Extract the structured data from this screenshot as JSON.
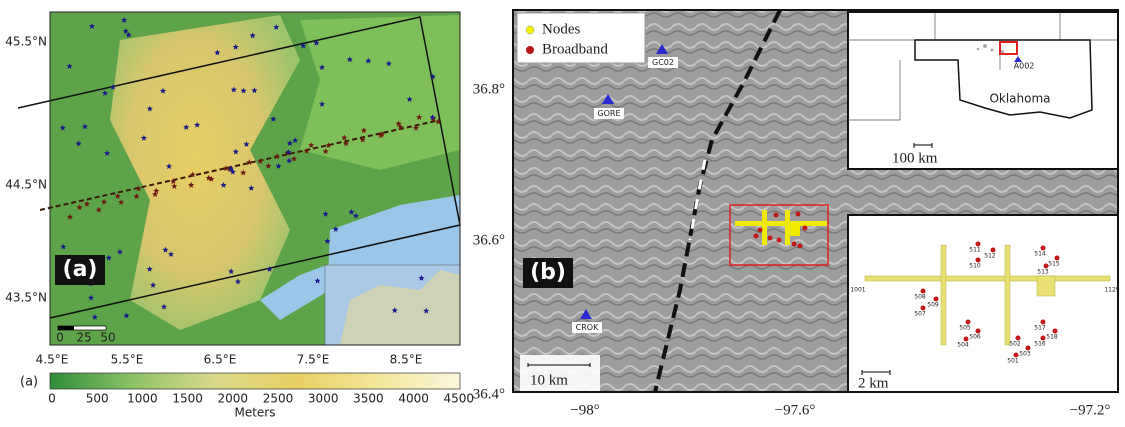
{
  "panel_a": {
    "label": "(a)",
    "lat_labels": [
      "45.5°N",
      "44.5°N",
      "43.5°N"
    ],
    "lon_labels": [
      "4.5°E",
      "5.5°E",
      "6.5°E",
      "7.5°E",
      "8.5°E"
    ],
    "scale_labels": [
      "0",
      "25",
      "50"
    ],
    "colorbar": {
      "label": "(a)",
      "ticks": [
        "0",
        "500",
        "1000",
        "1500",
        "2000",
        "2500",
        "3000",
        "3500",
        "4000",
        "4500"
      ],
      "unit": "Meters"
    }
  },
  "panel_b": {
    "label": "(b)",
    "legend": [
      "Nodes",
      "Broadband"
    ],
    "stations": [
      "GC02",
      "GORE",
      "CROK"
    ],
    "lat_labels": [
      "36.8°",
      "36.6°",
      "36.4°"
    ],
    "lon_labels": [
      "−98°",
      "−97.6°",
      "−97.2°"
    ],
    "scale_label": "10 km",
    "inset_state": {
      "station": "A002",
      "state": "Oklahoma",
      "scale": "100 km"
    },
    "inset_array": {
      "scale": "2 km",
      "node_labels": [
        "1001",
        "1129",
        "511",
        "512",
        "510",
        "514",
        "515",
        "513",
        "508",
        "509",
        "507",
        "505",
        "506",
        "504",
        "502",
        "503",
        "501",
        "517",
        "518",
        "516"
      ]
    }
  }
}
